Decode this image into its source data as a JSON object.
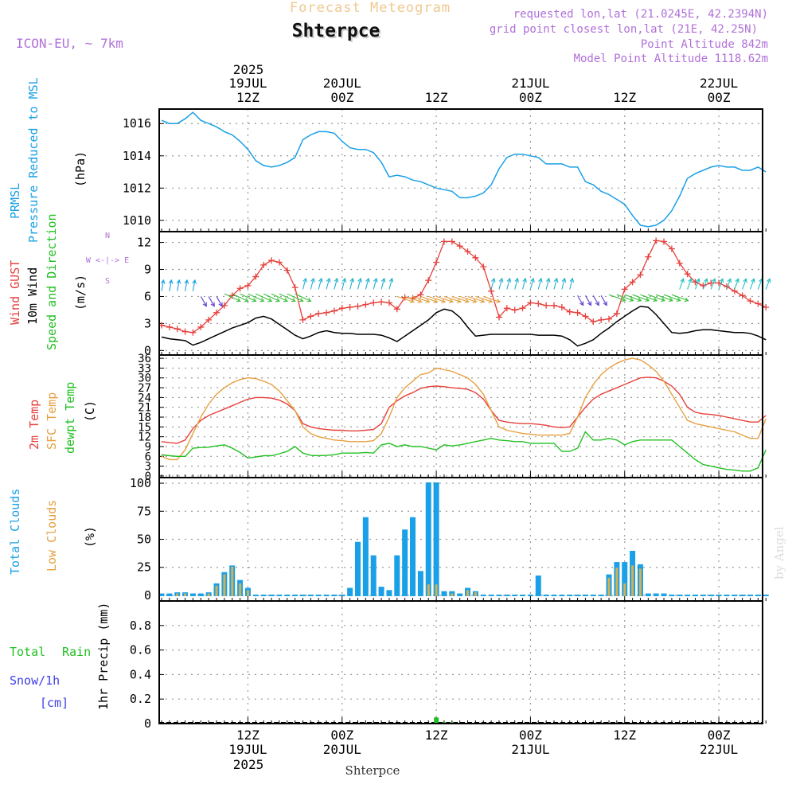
{
  "header": {
    "top_title": "Forecast Meteogram",
    "location": "Shterpce",
    "model": "ICON-EU, ~ 7km",
    "requested": "requested lon,lat (21.0245E, 42.2394N)",
    "gridpoint": "grid point closest lon,lat (21E, 42.25N)",
    "point_alt": "Point Altitude 842m",
    "model_alt": "Model Point Altitude 1118.62m"
  },
  "top_axis": {
    "year": "2025",
    "labels": [
      {
        "d": "19JUL",
        "h": "12Z"
      },
      {
        "d": "20JUL",
        "h": "00Z"
      },
      {
        "d": "",
        "h": "12Z"
      },
      {
        "d": "21JUL",
        "h": "00Z"
      },
      {
        "d": "",
        "h": "12Z"
      },
      {
        "d": "22JUL",
        "h": "00Z"
      }
    ]
  },
  "bottom_axis": {
    "year": "2025",
    "footer": "Shterpce",
    "labels": [
      {
        "h": "12Z",
        "d": "19JUL"
      },
      {
        "h": "00Z",
        "d": "20JUL"
      },
      {
        "h": "12Z",
        "d": ""
      },
      {
        "h": "00Z",
        "d": "21JUL"
      },
      {
        "h": "12Z",
        "d": ""
      },
      {
        "h": "00Z",
        "d": "22JUL"
      }
    ]
  },
  "panel_labels": {
    "pressure": [
      "PRMSL",
      "Pressure Reduced to MSL",
      "(hPa)"
    ],
    "wind": [
      "Wind GUST",
      "10m Wind",
      "Speed and Direction",
      "(m/s)"
    ],
    "compass": [
      "N",
      "W <-|-> E",
      "S"
    ],
    "temp": [
      "2m Temp",
      "SFC Temp",
      "dewpt Temp",
      "(C)"
    ],
    "cloud": [
      "Total Clouds",
      "Low Clouds",
      "(%)"
    ],
    "precip": [
      "Total",
      "Rain",
      "Snow/1h",
      "[cm]",
      "1hr Precip (mm)"
    ],
    "watermark": "by Angel"
  },
  "colors": {
    "pressure": "#1aa0e6",
    "gust": "#e6403c",
    "wind": "#000000",
    "t2m": "#e6403c",
    "sfc": "#e6a040",
    "dewpt": "#22c022",
    "total_cloud": "#1aa0e6",
    "low_cloud": "#d4b050",
    "rain": "#22c022",
    "snow": "#4040e6",
    "header_purple": "#b070d8",
    "header_orange": "#f0c890"
  },
  "chart_data": [
    {
      "type": "line",
      "title": "PRMSL Pressure Reduced to MSL",
      "ylabel": "(hPa)",
      "x_hours_from_start": {
        "start": 0,
        "step": 1
      },
      "ylim": [
        1009.3,
        1016.9
      ],
      "yticks": [
        1010,
        1012,
        1014,
        1016
      ],
      "series": [
        {
          "name": "PRMSL",
          "values": [
            1016.2,
            1016.0,
            1016.0,
            1016.3,
            1016.7,
            1016.2,
            1016.0,
            1015.8,
            1015.5,
            1015.3,
            1014.9,
            1014.4,
            1013.7,
            1013.4,
            1013.3,
            1013.4,
            1013.6,
            1013.9,
            1015.0,
            1015.3,
            1015.5,
            1015.5,
            1015.4,
            1014.9,
            1014.5,
            1014.4,
            1014.4,
            1014.2,
            1013.6,
            1012.7,
            1012.8,
            1012.7,
            1012.5,
            1012.4,
            1012.2,
            1012.0,
            1011.9,
            1011.8,
            1011.4,
            1011.4,
            1011.5,
            1011.7,
            1012.2,
            1013.2,
            1013.9,
            1014.1,
            1014.1,
            1014.0,
            1013.9,
            1013.5,
            1013.5,
            1013.5,
            1013.3,
            1013.3,
            1012.4,
            1012.2,
            1011.8,
            1011.6,
            1011.3,
            1011.0,
            1010.3,
            1009.7,
            1009.6,
            1009.7,
            1010.0,
            1010.6,
            1011.5,
            1012.6,
            1012.9,
            1013.1,
            1013.3,
            1013.4,
            1013.3,
            1013.3,
            1013.1,
            1013.1,
            1013.3,
            1013.0
          ]
        }
      ]
    },
    {
      "type": "line",
      "title": "Wind GUST / 10m Wind Speed and Direction",
      "ylabel": "(m/s)",
      "x_hours_from_start": {
        "start": 0,
        "step": 1
      },
      "ylim": [
        -0.5,
        13.2
      ],
      "yticks": [
        0,
        3,
        6,
        9,
        12
      ],
      "series": [
        {
          "name": "Wind GUST",
          "values": [
            2.8,
            2.6,
            2.4,
            2.1,
            2.0,
            2.6,
            3.4,
            4.2,
            5.0,
            6.1,
            6.9,
            7.2,
            8.2,
            9.5,
            10.0,
            9.8,
            8.9,
            7.0,
            3.4,
            3.8,
            4.1,
            4.2,
            4.4,
            4.7,
            4.8,
            4.9,
            5.1,
            5.3,
            5.4,
            5.3,
            4.6,
            5.9,
            5.8,
            6.2,
            7.8,
            9.8,
            12.1,
            12.1,
            11.6,
            11.0,
            10.3,
            9.3,
            6.6,
            3.7,
            4.7,
            4.5,
            4.7,
            5.3,
            5.2,
            5.0,
            5.0,
            4.8,
            4.3,
            4.2,
            3.8,
            3.2,
            3.4,
            3.5,
            4.1,
            6.8,
            7.6,
            8.4,
            10.4,
            12.2,
            12.1,
            11.3,
            9.7,
            8.5,
            7.6,
            7.2,
            7.5,
            7.5,
            7.1,
            6.6,
            6.1,
            5.5,
            5.2,
            4.8
          ]
        },
        {
          "name": "10m Wind",
          "values": [
            1.5,
            1.3,
            1.2,
            1.1,
            0.6,
            0.9,
            1.3,
            1.7,
            2.1,
            2.5,
            2.8,
            3.1,
            3.6,
            3.8,
            3.5,
            2.9,
            2.3,
            1.7,
            1.3,
            1.6,
            2.0,
            2.2,
            2.0,
            1.9,
            1.9,
            1.8,
            1.8,
            1.8,
            1.7,
            1.4,
            1.0,
            1.6,
            2.2,
            2.8,
            3.4,
            4.2,
            4.6,
            4.4,
            3.7,
            2.6,
            1.6,
            1.7,
            1.8,
            1.8,
            1.8,
            1.8,
            1.8,
            1.8,
            1.7,
            1.7,
            1.7,
            1.6,
            1.2,
            0.5,
            0.8,
            1.2,
            1.9,
            2.5,
            3.2,
            3.8,
            4.4,
            4.9,
            4.8,
            4.0,
            3.0,
            2.0,
            1.9,
            2.0,
            2.2,
            2.3,
            2.3,
            2.2,
            2.1,
            2.0,
            2.0,
            1.9,
            1.6,
            1.2
          ]
        }
      ]
    },
    {
      "type": "line",
      "title": "2m Temp / SFC Temp / dewpt Temp",
      "ylabel": "(C)",
      "x_hours_from_start": {
        "start": 0,
        "step": 1
      },
      "ylim": [
        -0.5,
        37
      ],
      "yticks": [
        0,
        3,
        6,
        9,
        12,
        15,
        18,
        21,
        24,
        27,
        30,
        33,
        36
      ],
      "series": [
        {
          "name": "2m Temp",
          "values": [
            10.5,
            10.2,
            10.0,
            11.0,
            14.5,
            17.0,
            18.5,
            19.5,
            20.5,
            21.5,
            22.5,
            23.5,
            24.0,
            24.0,
            23.8,
            23.2,
            22.0,
            20.0,
            16.0,
            15.0,
            14.5,
            14.2,
            14.0,
            14.0,
            13.8,
            13.8,
            14.0,
            14.2,
            16.0,
            21.0,
            23.0,
            24.5,
            25.5,
            26.8,
            27.3,
            27.5,
            27.3,
            27.0,
            26.8,
            26.5,
            25.5,
            23.5,
            20.0,
            17.0,
            16.5,
            16.2,
            16.0,
            16.0,
            15.8,
            15.5,
            15.0,
            14.8,
            15.0,
            18.0,
            21.0,
            23.5,
            25.0,
            26.0,
            27.0,
            28.0,
            29.0,
            30.0,
            30.2,
            30.0,
            29.0,
            27.5,
            25.0,
            21.0,
            19.5,
            19.0,
            18.8,
            18.5,
            18.0,
            17.5,
            17.0,
            16.5,
            16.5,
            18.5
          ]
        },
        {
          "name": "SFC Temp",
          "values": [
            6.0,
            5.0,
            5.0,
            8.0,
            13.0,
            18.0,
            22.0,
            25.0,
            27.0,
            28.5,
            29.5,
            30.0,
            29.8,
            29.0,
            28.0,
            26.0,
            23.0,
            20.0,
            15.0,
            13.0,
            12.0,
            11.5,
            11.0,
            10.8,
            10.5,
            10.5,
            10.5,
            10.8,
            13.0,
            18.0,
            24.0,
            27.0,
            29.0,
            31.0,
            31.5,
            33.0,
            32.5,
            32.0,
            31.0,
            30.0,
            28.0,
            25.0,
            20.0,
            15.0,
            14.0,
            13.5,
            13.0,
            12.8,
            12.5,
            12.5,
            12.5,
            12.5,
            13.0,
            18.0,
            24.0,
            28.0,
            31.0,
            33.0,
            34.5,
            35.5,
            36.0,
            35.5,
            34.0,
            32.0,
            29.0,
            25.0,
            21.0,
            17.0,
            16.0,
            15.5,
            15.0,
            14.5,
            14.0,
            13.5,
            12.5,
            11.5,
            11.5,
            17.5
          ]
        },
        {
          "name": "dewpt Temp",
          "values": [
            6.5,
            6.2,
            6.0,
            6.0,
            8.5,
            8.7,
            8.8,
            9.2,
            9.5,
            8.5,
            7.2,
            5.5,
            5.8,
            6.2,
            6.2,
            6.8,
            7.5,
            9.0,
            7.0,
            6.3,
            6.2,
            6.3,
            6.5,
            7.0,
            7.0,
            7.0,
            7.2,
            7.0,
            9.5,
            10.0,
            9.0,
            9.5,
            9.0,
            9.0,
            8.5,
            8.0,
            9.5,
            9.2,
            9.5,
            10.0,
            10.5,
            11.0,
            11.5,
            11.0,
            10.8,
            10.5,
            10.5,
            10.0,
            10.0,
            10.0,
            10.0,
            7.5,
            7.5,
            8.5,
            13.5,
            11.0,
            11.0,
            11.5,
            11.0,
            9.5,
            10.5,
            11.0,
            11.0,
            11.0,
            11.0,
            11.0,
            9.0,
            7.0,
            5.0,
            3.5,
            3.0,
            2.5,
            2.0,
            1.8,
            1.5,
            1.5,
            2.5,
            8.0
          ]
        }
      ]
    },
    {
      "type": "bar",
      "title": "Total Clouds / Low Clouds",
      "ylabel": "(%)",
      "x_hours_from_start": {
        "start": 0,
        "step": 1
      },
      "ylim": [
        -5,
        105
      ],
      "yticks": [
        0,
        25,
        50,
        75,
        100
      ],
      "series": [
        {
          "name": "Total Clouds",
          "values": [
            1,
            1,
            2,
            2,
            1,
            1,
            2,
            10,
            20,
            26,
            13,
            6,
            0,
            0,
            0,
            0,
            0,
            0,
            0,
            0,
            0,
            0,
            0,
            0,
            6,
            47,
            69,
            35,
            7,
            4,
            35,
            58,
            69,
            21,
            100,
            100,
            3,
            3,
            1,
            6,
            3,
            0,
            0,
            0,
            0,
            0,
            0,
            0,
            17,
            0,
            0,
            0,
            0,
            0,
            0,
            0,
            0,
            18,
            29,
            29,
            39,
            27,
            1,
            1,
            1,
            0,
            0,
            0,
            0,
            0,
            0,
            0,
            0,
            0,
            0,
            0,
            0,
            0
          ]
        },
        {
          "name": "Low Clouds",
          "values": [
            0,
            0,
            1,
            1,
            0,
            0,
            1,
            8,
            18,
            25,
            10,
            4,
            0,
            0,
            0,
            0,
            0,
            0,
            0,
            0,
            0,
            0,
            0,
            0,
            0,
            0,
            0,
            0,
            0,
            0,
            0,
            0,
            0,
            0,
            9,
            9,
            0,
            1,
            0,
            4,
            2,
            0,
            0,
            0,
            0,
            0,
            0,
            0,
            0,
            0,
            0,
            0,
            0,
            0,
            0,
            0,
            0,
            15,
            24,
            10,
            26,
            23,
            0,
            0,
            0,
            0,
            0,
            0,
            0,
            0,
            0,
            0,
            0,
            0,
            0,
            0,
            0,
            0
          ]
        }
      ]
    },
    {
      "type": "bar",
      "title": "1hr Precip (mm)",
      "ylabel": "1hr Precip (mm)",
      "x_hours_from_start": {
        "start": 0,
        "step": 1
      },
      "ylim": [
        0,
        1.0
      ],
      "yticks": [
        0,
        0.2,
        0.4,
        0.6,
        0.8
      ],
      "series": [
        {
          "name": "Total Rain",
          "values": [
            0,
            0,
            0,
            0,
            0,
            0,
            0,
            0,
            0,
            0,
            0,
            0,
            0,
            0,
            0,
            0,
            0,
            0,
            0,
            0,
            0,
            0,
            0,
            0,
            0,
            0,
            0,
            0,
            0,
            0,
            0,
            0,
            0,
            0,
            0,
            0.05,
            0.01,
            0.01,
            0,
            0,
            0,
            0,
            0,
            0,
            0,
            0,
            0,
            0,
            0,
            0,
            0,
            0,
            0,
            0,
            0,
            0,
            0,
            0,
            0,
            0,
            0,
            0,
            0,
            0,
            0,
            0,
            0,
            0,
            0,
            0,
            0,
            0,
            0,
            0,
            0,
            0,
            0,
            0
          ]
        },
        {
          "name": "Snow/1h",
          "values": [
            0,
            0,
            0,
            0,
            0,
            0,
            0,
            0,
            0,
            0,
            0,
            0,
            0,
            0,
            0,
            0,
            0,
            0,
            0,
            0,
            0,
            0,
            0,
            0,
            0,
            0,
            0,
            0,
            0,
            0,
            0,
            0,
            0,
            0,
            0,
            0,
            0,
            0,
            0,
            0,
            0,
            0,
            0,
            0,
            0,
            0,
            0,
            0,
            0,
            0,
            0,
            0,
            0,
            0,
            0,
            0,
            0,
            0,
            0,
            0,
            0,
            0,
            0,
            0,
            0,
            0,
            0,
            0,
            0,
            0,
            0,
            0,
            0,
            0,
            0,
            0,
            0,
            0
          ]
        }
      ]
    }
  ]
}
